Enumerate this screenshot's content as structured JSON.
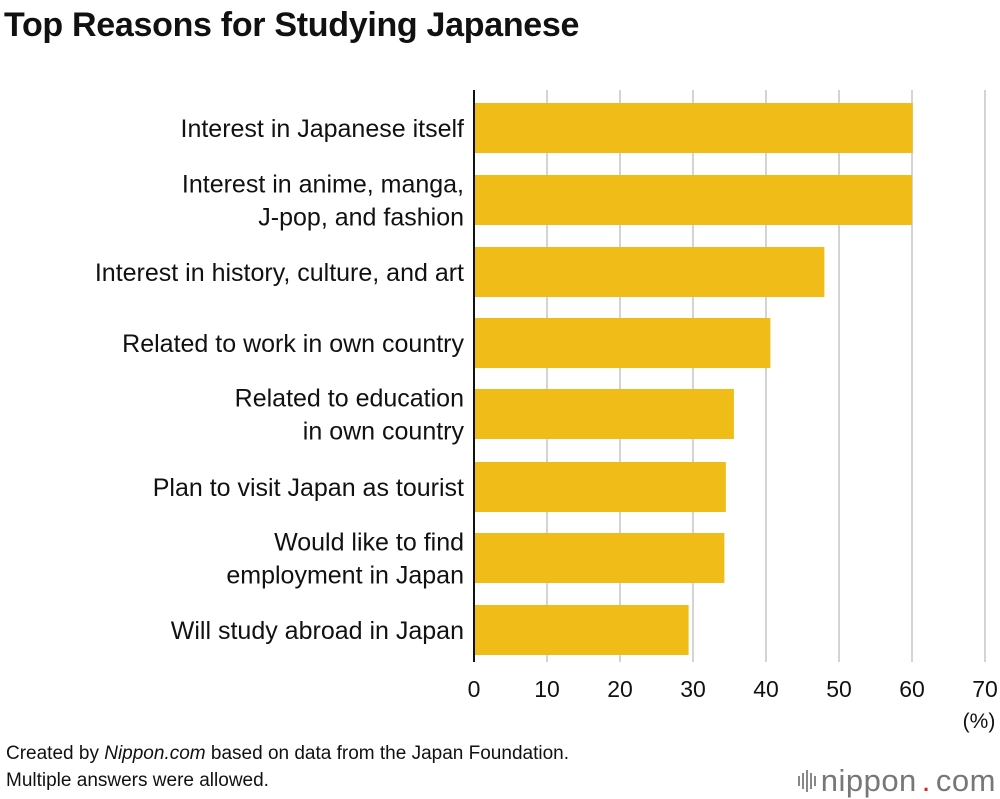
{
  "title": "Top Reasons for Studying Japanese",
  "footer": {
    "line1_prefix": "Created by ",
    "line1_source": "Nippon.com",
    "line1_suffix": " based on data from the Japan Foundation.",
    "line2": "Multiple answers were allowed."
  },
  "logo": {
    "name": "nippon",
    "dot": ".",
    "tld": "com",
    "mark_icon": "sound-bars-icon"
  },
  "colors": {
    "bar": "#f0bc17",
    "grid": "#d4d4d4",
    "axis": "#111111"
  },
  "chart_data": {
    "type": "bar",
    "orientation": "horizontal",
    "categories": [
      [
        "Interest in Japanese itself"
      ],
      [
        "Interest in anime, manga,",
        "J-pop, and fashion"
      ],
      [
        "Interest in history, culture, and art"
      ],
      [
        "Related to work in own country"
      ],
      [
        "Related to education",
        "in own country"
      ],
      [
        "Plan to visit Japan as tourist"
      ],
      [
        "Would like to find",
        "employment in Japan"
      ],
      [
        "Will study abroad in Japan"
      ]
    ],
    "values": [
      60.1,
      60.0,
      48.0,
      40.6,
      35.6,
      34.5,
      34.3,
      29.4
    ],
    "xlim": [
      0,
      70
    ],
    "xticks": [
      0,
      10,
      20,
      30,
      40,
      50,
      60,
      70
    ],
    "xunit": "(%)",
    "grid": true
  }
}
